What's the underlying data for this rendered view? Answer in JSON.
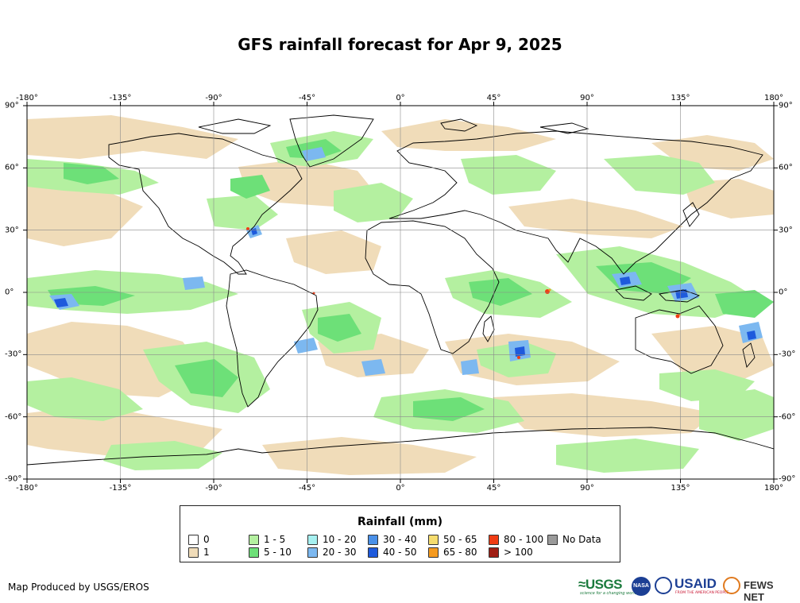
{
  "title": "GFS rainfall forecast for Apr 9, 2025",
  "map": {
    "lon_ticks": [
      "-180°",
      "-135°",
      "-90°",
      "-45°",
      "0°",
      "45°",
      "90°",
      "135°",
      "180°"
    ],
    "lat_ticks": [
      "90°",
      "60°",
      "30°",
      "0°",
      "-30°",
      "-60°",
      "-90°"
    ],
    "lon_range": [
      -180,
      180
    ],
    "lat_range": [
      -90,
      90
    ],
    "grid": true
  },
  "legend": {
    "title": "Rainfall (mm)",
    "items": [
      {
        "label": "0",
        "color": "#ffffff"
      },
      {
        "label": "1",
        "color": "#f0dcb9"
      },
      {
        "label": "1 - 5",
        "color": "#b4f0a0"
      },
      {
        "label": "5 - 10",
        "color": "#6de078"
      },
      {
        "label": "10 - 20",
        "color": "#a6f0f0"
      },
      {
        "label": "20 - 30",
        "color": "#7cb8f0"
      },
      {
        "label": "30 - 40",
        "color": "#4a90e8"
      },
      {
        "label": "40 - 50",
        "color": "#1e5adc"
      },
      {
        "label": "50 - 65",
        "color": "#f5dc6e"
      },
      {
        "label": "65 - 80",
        "color": "#f59a1e"
      },
      {
        "label": "80 - 100",
        "color": "#f03c14"
      },
      {
        "label": "> 100",
        "color": "#a01e14"
      },
      {
        "label": "No Data",
        "color": "#9a9a9a"
      }
    ]
  },
  "credit": "Map Produced by USGS/EROS",
  "logos": {
    "usgs": "≈USGS",
    "usgs_tagline": "science for a changing world",
    "nasa": "NASA",
    "usaid": "USAID",
    "usaid_tagline": "FROM THE AMERICAN PEOPLE",
    "fews": "FEWS NET"
  }
}
